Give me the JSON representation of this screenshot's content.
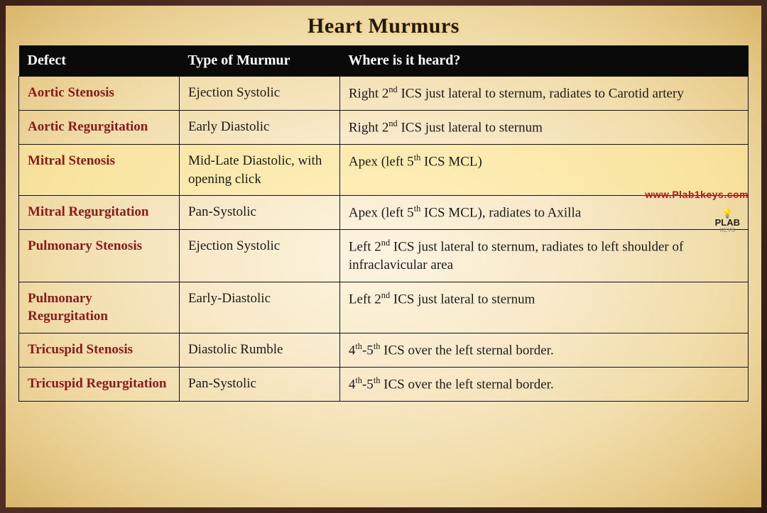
{
  "title": "Heart Murmurs",
  "columns": {
    "defect": "Defect",
    "type": "Type of Murmur",
    "where": "Where is it heard?"
  },
  "rows": [
    {
      "defect": "Aortic Stenosis",
      "type": "Ejection Systolic",
      "where": "Right 2<sup>nd</sup> ICS just lateral to sternum, radiates to Carotid artery",
      "highlight": false
    },
    {
      "defect": "Aortic Regurgitation",
      "type": "Early Diastolic",
      "where": "Right 2<sup>nd</sup> ICS just lateral to sternum",
      "highlight": false
    },
    {
      "defect": "Mitral Stenosis",
      "type": "Mid-Late Diastolic, with opening click",
      "where": "Apex (left 5<sup>th</sup> ICS MCL)",
      "highlight": true
    },
    {
      "defect": "Mitral Regurgitation",
      "type": "Pan-Systolic",
      "where": "Apex (left 5<sup>th</sup> ICS MCL), radiates to Axilla",
      "highlight": false
    },
    {
      "defect": "Pulmonary Stenosis",
      "type": "Ejection Systolic",
      "where": "Left 2<sup>nd</sup> ICS just lateral to sternum, radiates to left shoulder of infraclavicular area",
      "highlight": false
    },
    {
      "defect": "Pulmonary Regurgitation",
      "type": "Early-Diastolic",
      "where": "Left 2<sup>nd</sup> ICS just lateral to sternum",
      "highlight": false
    },
    {
      "defect": "Tricuspid Stenosis",
      "type": "Diastolic Rumble",
      "where": "4<sup>th</sup>-5<sup>th</sup> ICS over the left sternal border.",
      "highlight": false
    },
    {
      "defect": "Tricuspid Regurgitation",
      "type": "Pan-Systolic",
      "where": "4<sup>th</sup>-5<sup>th</sup> ICS over the left sternal border.",
      "highlight": false
    }
  ],
  "watermark": {
    "url": "www.Plab1keys.com",
    "logo_top": "💡",
    "logo_mid": "PLAB",
    "logo_bot": "KEYS"
  },
  "style": {
    "title_color": "#1a1a1a",
    "header_bg": "#0a0a0a",
    "header_text": "#ffffff",
    "defect_color": "#8b1a1a",
    "body_text": "#1a1a1a",
    "border_color": "#111111",
    "highlight_bg": "rgba(255,235,150,0.5)",
    "page_bg_center": "#fdf4e0",
    "page_bg_edge": "#d8b66a",
    "title_fontsize": 30,
    "header_fontsize": 20,
    "cell_fontsize": 19,
    "col_widths": [
      "22%",
      "22%",
      "56%"
    ]
  }
}
